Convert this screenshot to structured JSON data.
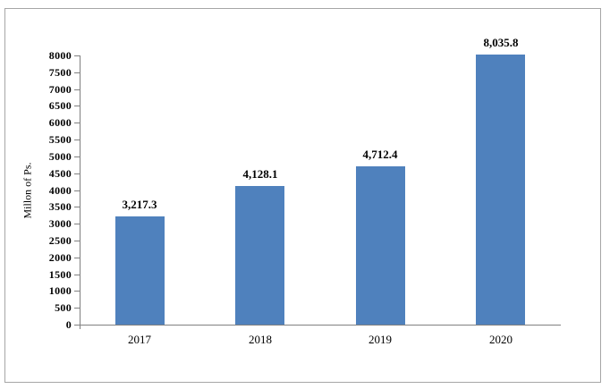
{
  "chart_data": {
    "type": "bar",
    "title": "",
    "xlabel": "",
    "ylabel": "Millon of Ps.",
    "categories": [
      "2017",
      "2018",
      "2019",
      "2020"
    ],
    "values": [
      3217.3,
      4128.1,
      4712.4,
      8035.8
    ],
    "value_labels": [
      "3,217.3",
      "4,128.1",
      "4,712.4",
      "8,035.8"
    ],
    "yticks": [
      "0",
      "500",
      "1000",
      "1500",
      "2000",
      "2500",
      "3000",
      "3500",
      "4000",
      "4500",
      "5000",
      "5500",
      "6000",
      "6500",
      "7000",
      "7500",
      "8000"
    ],
    "ylim": [
      0,
      8000
    ],
    "grid": false,
    "legend": "none",
    "bar_color": "#4F81BD",
    "axis_color": "#808080",
    "frame_border_color": "#A6A6A6",
    "text_color": "#000000"
  }
}
